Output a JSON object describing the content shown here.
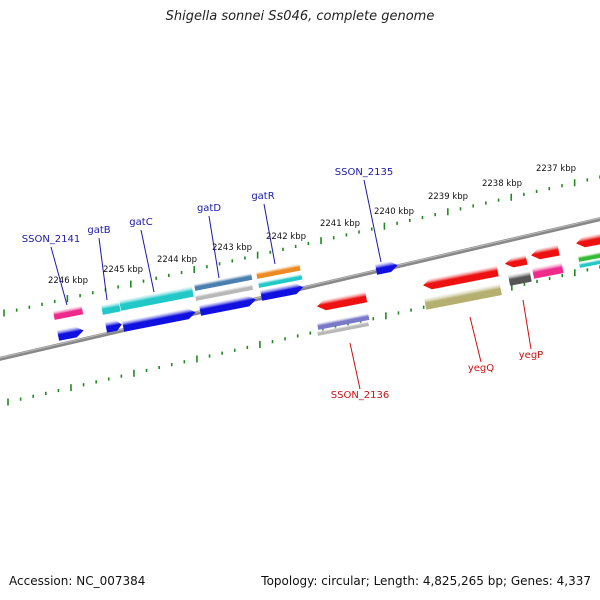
{
  "title": "Shigella sonnei Ss046, complete genome",
  "footer": {
    "accession_label": "Accession:",
    "accession": "NC_007384",
    "topology_label": "Topology:",
    "topology": "circular",
    "length_label": "Length:",
    "length": "4,825,265 bp",
    "genes_label": "Genes:",
    "genes": "4,337"
  },
  "ruler": {
    "unit": "kbp",
    "tick_labels": [
      "2246 kbp",
      "2245 kbp",
      "2244 kbp",
      "2243 kbp",
      "2242 kbp",
      "2241 kbp",
      "2240 kbp",
      "2239 kbp",
      "2238 kbp",
      "2237 kbp"
    ]
  },
  "gene_labels": {
    "forward": [
      "SSON_2141",
      "gatB",
      "gatC",
      "gatD",
      "gatR",
      "SSON_2135"
    ],
    "reverse": [
      "SSON_2136",
      "yegQ",
      "yegP"
    ]
  },
  "colors": {
    "backbone": "#777777",
    "ruler_tick": "#1f8a1f",
    "forward_label": "#1a1aaa",
    "reverse_label": "#cc1111",
    "blue": "#1010e0",
    "cyan": "#22c8c8",
    "steelblue": "#4a7fb0",
    "grey": "#b8b8b8",
    "red": "#ee1111",
    "olive": "#b5b070",
    "pink": "#ee2a8a",
    "orange": "#ee8a22",
    "green": "#33bb33",
    "darkgrey": "#555555",
    "lavender": "#7a78c8"
  }
}
